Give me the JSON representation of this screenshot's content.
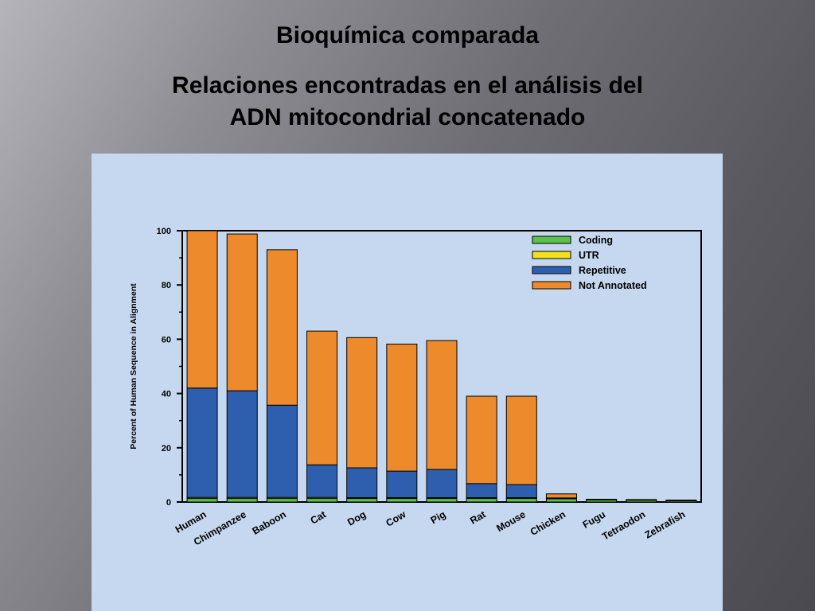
{
  "slide": {
    "title": "Bioquímica comparada",
    "subtitle_line1": "Relaciones encontradas en el análisis del",
    "subtitle_line2": "ADN mitocondrial concatenado"
  },
  "colors": {
    "coding": "#5cc14a",
    "utr": "#f2e21c",
    "repetitive": "#2e5fae",
    "not_annotated": "#ec8a2c",
    "panel": "#c5d8ef"
  },
  "chart_data": {
    "type": "bar",
    "stacked": true,
    "title": "",
    "xlabel": "",
    "ylabel": "Percent of Human Sequence in Alignment",
    "ylim": [
      0,
      100
    ],
    "yticks": [
      "0",
      "20",
      "40",
      "60",
      "80",
      "100"
    ],
    "legend_position": "top-right",
    "grid": false,
    "categories": [
      "Human",
      "Chimpanzee",
      "Baboon",
      "Cat",
      "Dog",
      "Cow",
      "Pig",
      "Rat",
      "Mouse",
      "Chicken",
      "Fugu",
      "Tetraodon",
      "Zebrafish"
    ],
    "series": [
      {
        "name": "Coding",
        "color_key": "coding",
        "values": [
          1.3,
          1.3,
          1.3,
          1.3,
          1.3,
          1.3,
          1.3,
          1.3,
          1.3,
          1.2,
          0.8,
          0.7,
          0.5
        ]
      },
      {
        "name": "UTR",
        "color_key": "utr",
        "values": [
          0.4,
          0.4,
          0.4,
          0.4,
          0.3,
          0.3,
          0.3,
          0.3,
          0.3,
          0.2,
          0.1,
          0.1,
          0.1
        ]
      },
      {
        "name": "Repetitive",
        "color_key": "repetitive",
        "values": [
          40.3,
          39.3,
          34.0,
          12.0,
          11.0,
          9.8,
          10.4,
          5.2,
          4.8,
          0.1,
          0.0,
          0.0,
          0.0
        ]
      },
      {
        "name": "Not Annotated",
        "color_key": "not_annotated",
        "values": [
          58.0,
          57.8,
          57.3,
          49.3,
          48.0,
          46.8,
          47.5,
          32.2,
          32.6,
          1.5,
          0.1,
          0.1,
          0.1
        ]
      }
    ]
  }
}
